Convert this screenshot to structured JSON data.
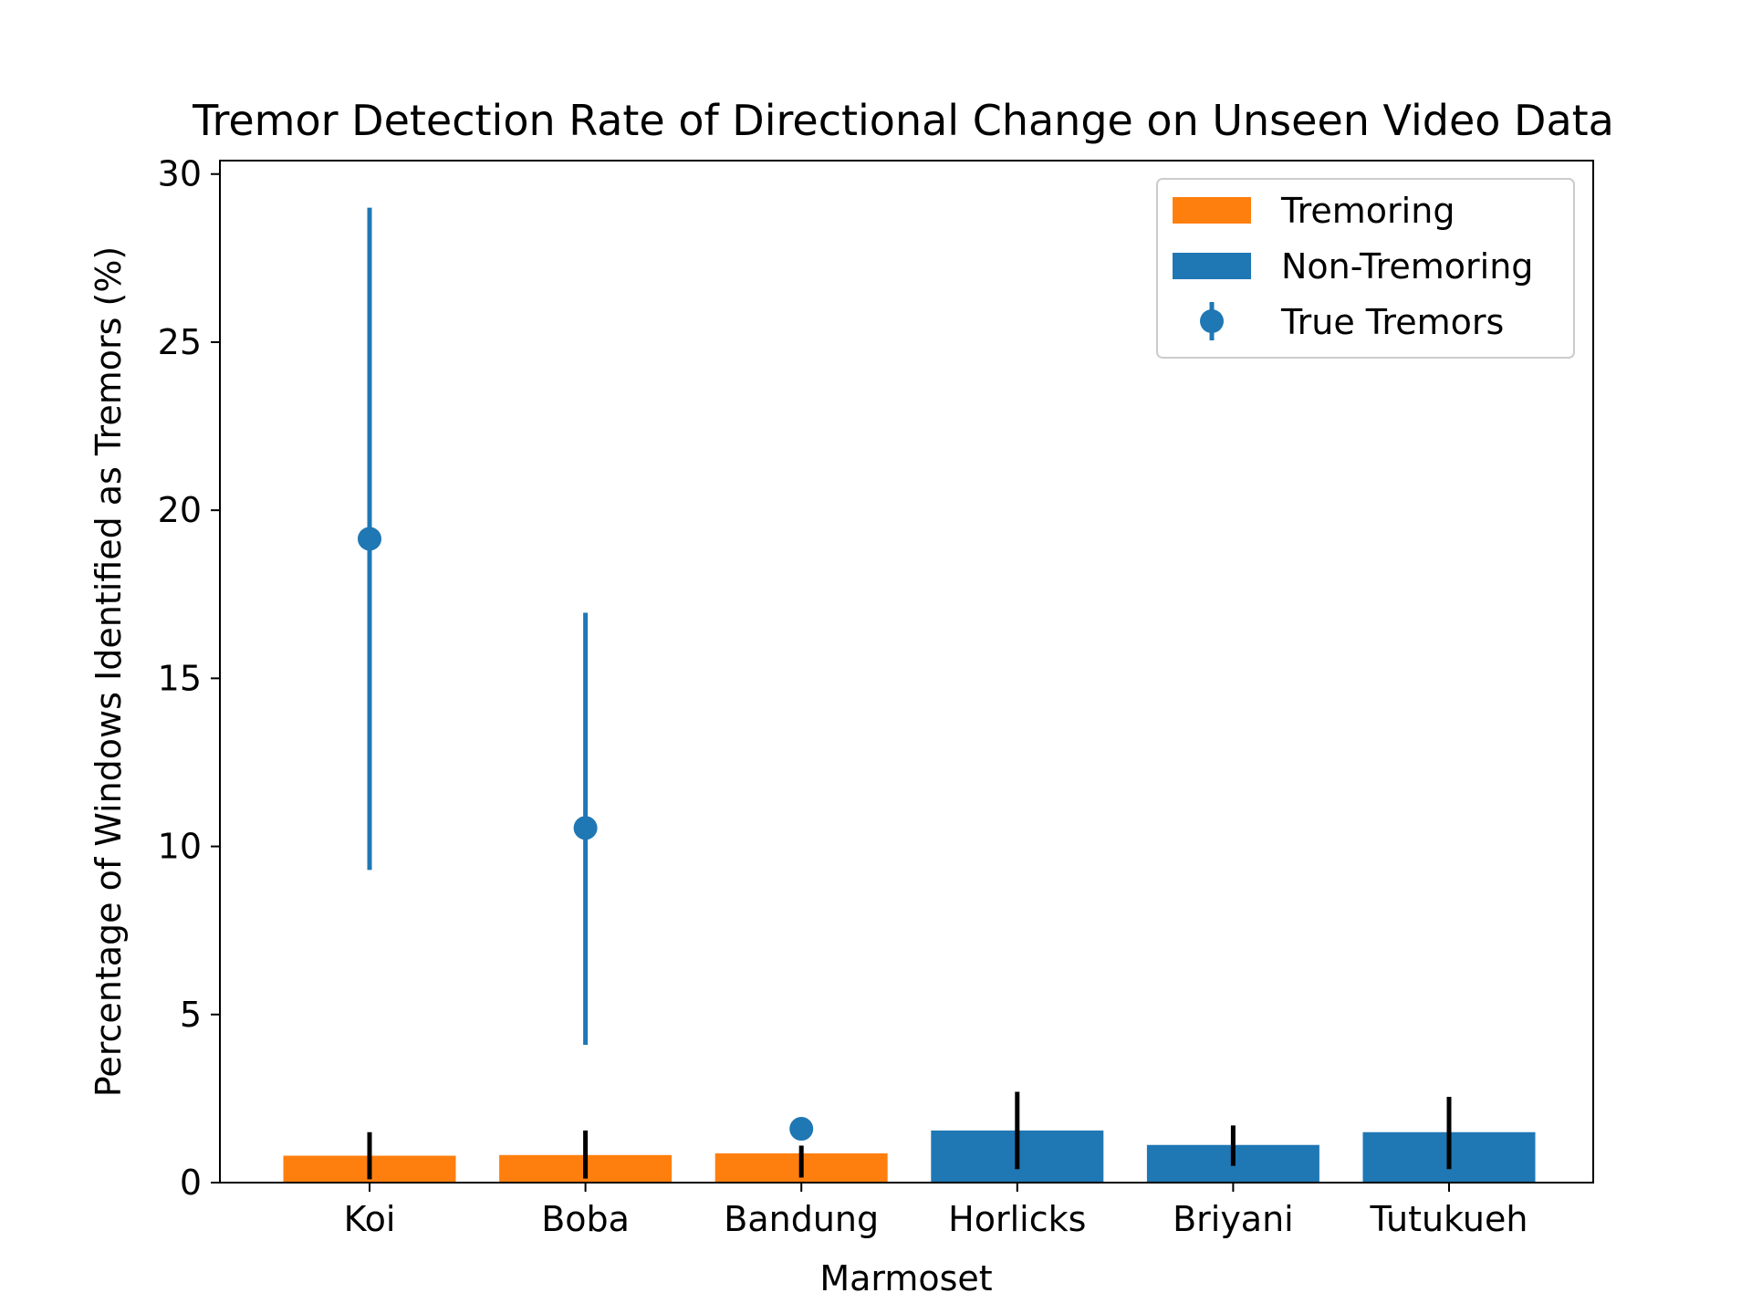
{
  "chart_data": {
    "type": "bar",
    "title": "Tremor Detection Rate of Directional Change on Unseen Video Data",
    "xlabel": "Marmoset",
    "ylabel": "Percentage of Windows Identified as Tremors (%)",
    "categories": [
      "Koi",
      "Boba",
      "Bandung",
      "Horlicks",
      "Briyani",
      "Tutukueh"
    ],
    "ylim": [
      0,
      30.4
    ],
    "yticks": [
      0,
      5,
      10,
      15,
      20,
      25,
      30
    ],
    "ytick_labels": [
      "0",
      "5",
      "10",
      "15",
      "20",
      "25",
      "30"
    ],
    "grid": false,
    "legend_position": "top-right",
    "bars": {
      "values": [
        0.8,
        0.82,
        0.87,
        1.55,
        1.12,
        1.5
      ],
      "error_low": [
        0.1,
        0.12,
        0.15,
        0.4,
        0.5,
        0.4
      ],
      "error_high": [
        1.5,
        1.55,
        1.1,
        2.7,
        1.7,
        2.55
      ],
      "groups": [
        "Tremoring",
        "Tremoring",
        "Tremoring",
        "Non-Tremoring",
        "Non-Tremoring",
        "Non-Tremoring"
      ]
    },
    "series": [
      {
        "name": "Tremoring",
        "color": "#ff7f0e"
      },
      {
        "name": "Non-Tremoring",
        "color": "#1f77b4"
      },
      {
        "name": "True Tremors",
        "color": "#1f77b4",
        "marker": "circle-with-errorbar",
        "points": [
          {
            "category": "Koi",
            "value": 19.15,
            "error_low": 9.3,
            "error_high": 29.0
          },
          {
            "category": "Boba",
            "value": 10.55,
            "error_low": 4.1,
            "error_high": 16.95
          },
          {
            "category": "Bandung",
            "value": 1.6,
            "error_low": null,
            "error_high": null
          }
        ]
      }
    ],
    "bar_error_color": "#000000"
  }
}
